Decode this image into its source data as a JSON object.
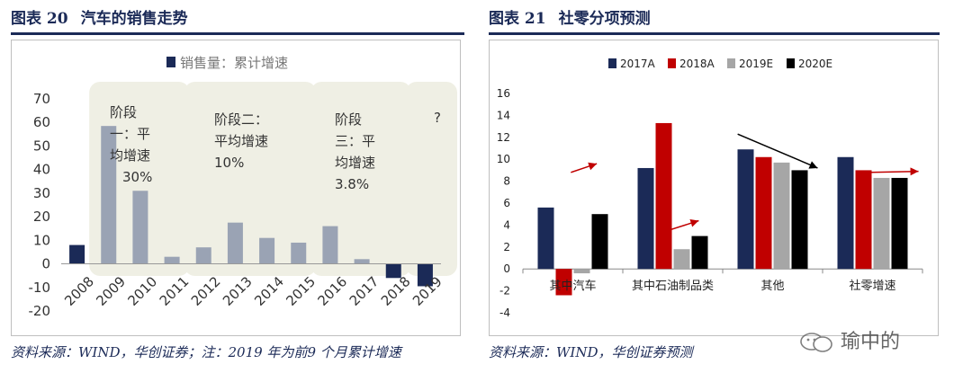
{
  "left_figure": {
    "label": "图表 20",
    "title": "汽车的销售走势",
    "source": "资料来源：WIND，华创证券；注：2019 年为前9 个月累计增速"
  },
  "right_figure": {
    "label": "图表 21",
    "title": "社零分项预测",
    "source": "资料来源：WIND，华创证券预测"
  },
  "watermark": "瑜中的",
  "colors": {
    "navy": "#1b2a57",
    "red": "#c00000",
    "grey_bar": "#9aa3b4",
    "light_grey": "#a6a6a6",
    "black": "#000000",
    "phase_bg": "#efefe4"
  },
  "chart_data": [
    {
      "type": "bar",
      "legend": [
        "销售量：累计增速"
      ],
      "categories": [
        "2008",
        "2009",
        "2010",
        "2011",
        "2012",
        "2013",
        "2014",
        "2015",
        "2016",
        "2017",
        "2018",
        "2019"
      ],
      "values": [
        8,
        58.5,
        31,
        3,
        7,
        17.5,
        11,
        9,
        16,
        2,
        -6,
        -9.5
      ],
      "ylim": [
        -20,
        70
      ],
      "yticks": [
        "-20",
        "-10",
        "0",
        "10",
        "20",
        "30",
        "40",
        "50",
        "60",
        "70"
      ],
      "highlighted_years": [
        "2008",
        "2018",
        "2019"
      ],
      "annotations": [
        {
          "lines": [
            "阶段",
            "一：平",
            "均增速",
            "30%"
          ]
        },
        {
          "lines": [
            "阶段二：",
            "平均增速",
            "10%"
          ]
        },
        {
          "lines": [
            "阶段",
            "三：平",
            "均增速",
            "3.8%"
          ]
        },
        {
          "lines": [
            "?"
          ]
        }
      ]
    },
    {
      "type": "bar",
      "categories": [
        "其中汽车",
        "其中石油制品类",
        "其他",
        "社零增速"
      ],
      "series": [
        {
          "name": "2017A",
          "values": [
            5.6,
            9.2,
            10.9,
            10.2
          ]
        },
        {
          "name": "2018A",
          "values": [
            -2.4,
            13.3,
            10.2,
            9.0
          ]
        },
        {
          "name": "2019E",
          "values": [
            -0.4,
            1.8,
            9.7,
            8.3
          ]
        },
        {
          "name": "2020E",
          "values": [
            5.0,
            3.0,
            9.0,
            8.3
          ]
        }
      ],
      "ylim": [
        -4,
        16
      ],
      "yticks": [
        "-4",
        "-2",
        "0",
        "2",
        "4",
        "6",
        "8",
        "10",
        "12",
        "14",
        "16"
      ],
      "trend_arrows": [
        "red-up",
        "red-up",
        "black-down",
        "red-flat"
      ]
    }
  ]
}
